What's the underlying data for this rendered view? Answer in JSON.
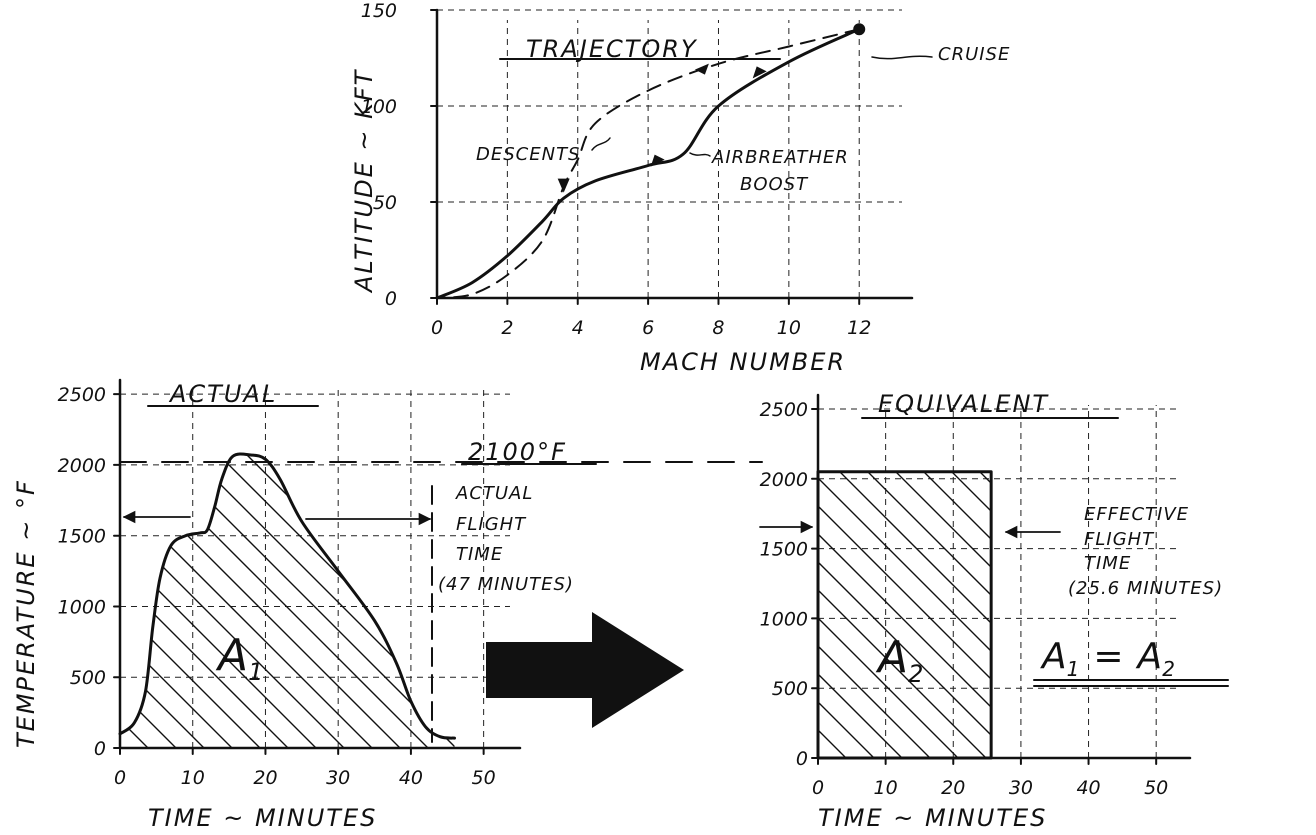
{
  "chart_data": [
    {
      "type": "line",
      "title": "TRAJECTORY",
      "xlabel": "MACH NUMBER",
      "ylabel": "ALTITUDE ~ KFT",
      "xlim": [
        0,
        13.5
      ],
      "ylim": [
        0,
        150
      ],
      "x_ticks": [
        "0",
        "2",
        "4",
        "6",
        "8",
        "10",
        "12"
      ],
      "y_ticks": [
        "0",
        "50",
        "100",
        "150"
      ],
      "grid": true,
      "series": [
        {
          "name": "AIRBREATHER BOOST",
          "style": "solid",
          "points": [
            [
              0,
              0
            ],
            [
              1,
              8
            ],
            [
              2,
              22
            ],
            [
              3,
              40
            ],
            [
              3.6,
              52
            ],
            [
              4.5,
              61
            ],
            [
              6,
              69
            ],
            [
              7,
              75
            ],
            [
              8,
              100
            ],
            [
              10,
              123
            ],
            [
              12,
              140
            ]
          ]
        },
        {
          "name": "DESCENTS",
          "style": "dashed",
          "points": [
            [
              12,
              140
            ],
            [
              10,
              131
            ],
            [
              8,
              122
            ],
            [
              6,
              108
            ],
            [
              4.5,
              91
            ],
            [
              4,
              72
            ],
            [
              3.6,
              58
            ],
            [
              3,
              30
            ],
            [
              2,
              12
            ],
            [
              1,
              2
            ],
            [
              0,
              0
            ]
          ]
        }
      ],
      "annotations": [
        {
          "text": "CRUISE",
          "x": 12,
          "y": 140
        },
        {
          "text": "DESCENTS",
          "x": 4,
          "y": 85
        },
        {
          "text": "AIRBREATHER",
          "x": 7,
          "y": 81
        },
        {
          "text": "BOOST",
          "x": 8,
          "y": 69
        }
      ]
    },
    {
      "type": "area",
      "title": "ACTUAL",
      "xlabel": "TIME ~ MINUTES",
      "ylabel": "TEMPERATURE ~ °F",
      "xlim": [
        0,
        55
      ],
      "ylim": [
        0,
        2600
      ],
      "x_ticks": [
        "0",
        "10",
        "20",
        "30",
        "40",
        "50"
      ],
      "y_ticks": [
        "0",
        "500",
        "1000",
        "1500",
        "2000",
        "2500"
      ],
      "grid": true,
      "series": [
        {
          "name": "A1",
          "points": [
            [
              0,
              100
            ],
            [
              2,
              180
            ],
            [
              3.5,
              400
            ],
            [
              4.5,
              850
            ],
            [
              5.5,
              1200
            ],
            [
              7,
              1430
            ],
            [
              9,
              1500
            ],
            [
              11,
              1520
            ],
            [
              12,
              1540
            ],
            [
              13,
              1700
            ],
            [
              14,
              1900
            ],
            [
              15.5,
              2060
            ],
            [
              18,
              2070
            ],
            [
              20,
              2040
            ],
            [
              22,
              1900
            ],
            [
              25,
              1600
            ],
            [
              30,
              1250
            ],
            [
              35,
              900
            ],
            [
              38,
              600
            ],
            [
              40,
              330
            ],
            [
              42,
              150
            ],
            [
              44,
              80
            ],
            [
              46,
              70
            ]
          ]
        }
      ],
      "annotations": [
        {
          "text": "2100°F",
          "y": 2100
        },
        {
          "text": "A1",
          "x": 20,
          "y": 900
        },
        {
          "text": "ACTUAL FLIGHT TIME (47 MINUTES)",
          "x": 44
        }
      ]
    },
    {
      "type": "area",
      "title": "EQUIVALENT",
      "xlabel": "TIME ~ MINUTES",
      "ylabel": "",
      "xlim": [
        0,
        55
      ],
      "ylim": [
        0,
        2600
      ],
      "x_ticks": [
        "0",
        "10",
        "20",
        "30",
        "40",
        "50"
      ],
      "y_ticks": [
        "0",
        "500",
        "1000",
        "1500",
        "2000",
        "2500"
      ],
      "grid": true,
      "series": [
        {
          "name": "A2",
          "points": [
            [
              0,
              2050
            ],
            [
              25.6,
              2050
            ]
          ]
        }
      ],
      "annotations": [
        {
          "text": "A2",
          "x": 11,
          "y": 900
        },
        {
          "text": "EFFECTIVE FLIGHT TIME (25.6 MINUTES)",
          "x": 25.6
        },
        {
          "text": "A1 = A2"
        }
      ]
    }
  ],
  "labels": {
    "traj_title": "TRAJECTORY",
    "traj_xlabel": "MACH NUMBER",
    "traj_ylabel": "ALTITUDE ~ KFT",
    "cruise": "CRUISE",
    "descents": "DESCENTS",
    "boost_1": "AIRBREATHER",
    "boost_2": "BOOST",
    "actual_title": "ACTUAL",
    "equiv_title": "EQUIVALENT",
    "temp_ylabel": "TEMPERATURE ~ °F",
    "time_xlabel": "TIME ~ MINUTES",
    "line_2100": "2100°F",
    "aft_1": "ACTUAL",
    "aft_2": "FLIGHT",
    "aft_3": "TIME",
    "aft_4": "(47 MINUTES)",
    "eft_1": "EFFECTIVE",
    "eft_2": "FLIGHT",
    "eft_3": "TIME",
    "eft_4": "(25.6 MINUTES)",
    "a1_main": "A",
    "a1_sub": "1",
    "a2_main": "A",
    "a2_sub": "2",
    "eq_a": "A",
    "eq_1": "1",
    "eq_sign": "=",
    "eq_b": "A",
    "eq_2": "2"
  }
}
